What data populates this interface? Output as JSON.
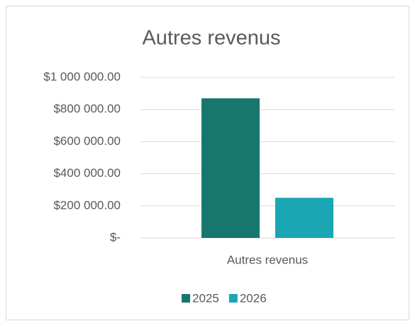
{
  "chart_data": {
    "type": "bar",
    "title": "Autres revenus",
    "categories": [
      "Autres revenus"
    ],
    "series": [
      {
        "name": "2025",
        "color": "#17776f",
        "values": [
          870000
        ]
      },
      {
        "name": "2026",
        "color": "#1aa6b2",
        "values": [
          250000
        ]
      }
    ],
    "ylim": [
      0,
      1000000
    ],
    "yticks": [
      {
        "value": 0,
        "label": "$-"
      },
      {
        "value": 200000,
        "label": "$200 000.00"
      },
      {
        "value": 400000,
        "label": "$400 000.00"
      },
      {
        "value": 600000,
        "label": "$600 000.00"
      },
      {
        "value": 800000,
        "label": "$800 000.00"
      },
      {
        "value": 1000000,
        "label": "$1 000 000.00"
      }
    ],
    "grid": true,
    "legend": "bottom"
  }
}
